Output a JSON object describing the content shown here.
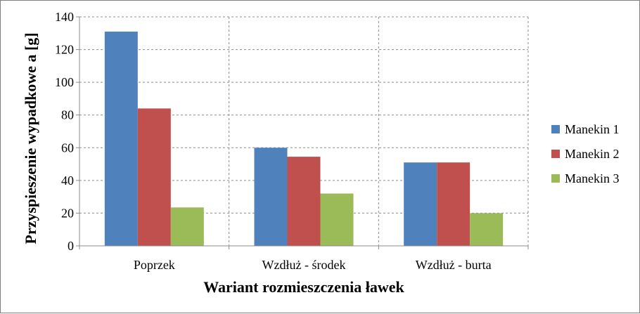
{
  "chart_data": {
    "type": "bar",
    "title": "",
    "xlabel": "Wariant rozmieszczenia ławek",
    "ylabel": "Przyspieszenie wypadkowe a [g]",
    "categories": [
      "Poprzek",
      "Wzdłuż - środek",
      "Wzdłuż - burta"
    ],
    "series": [
      {
        "name": "Manekin 1",
        "color": "#4f81bd",
        "values": [
          131,
          60,
          51
        ]
      },
      {
        "name": "Manekin 2",
        "color": "#c0504d",
        "values": [
          84,
          54.5,
          51
        ]
      },
      {
        "name": "Manekin 3",
        "color": "#9bbb59",
        "values": [
          23.5,
          32,
          20
        ]
      }
    ],
    "ylim": [
      0,
      140
    ],
    "yticks": [
      0,
      20,
      40,
      60,
      80,
      100,
      120,
      140
    ],
    "grid": true,
    "legend_position": "right"
  }
}
